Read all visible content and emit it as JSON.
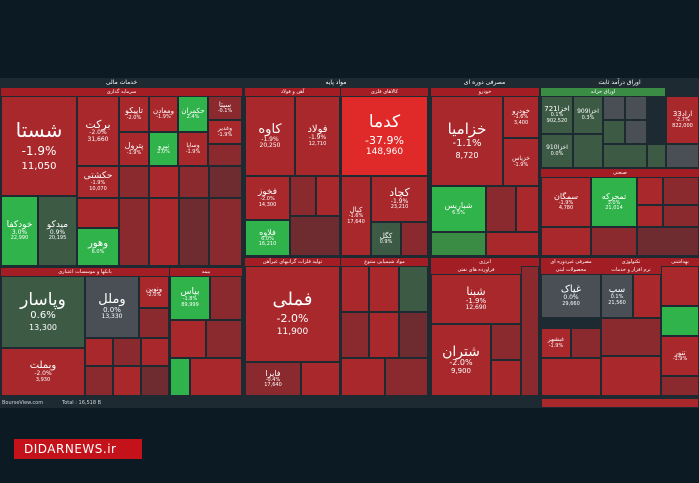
{
  "sections": {
    "khadamat_mali": "خدمات مالی",
    "mavad_payeh": "مواد پایه",
    "masrafi_dore_i": "مصرفی دوره ای",
    "avragh_daramad_sabet": "اوراق درآمد ثابت",
    "avragh_kharidi": "اوراق خزانه",
    "kalahaye_fazi": "کالاهای فلزی",
    "ahan_foolad": "آهن و فولاد",
    "khodro": "خودرو",
    "sanati": "صنعتی",
    "bank_moasesat": "بانکها و موسسات اعتباری",
    "bimeh": "بیمه",
    "tolid_felezat": "تولید فلزات گرانبهای غیرآهن",
    "mavad_shimiaei": "مواد شیمیایی متنوع",
    "enerji": "انرژی",
    "faravardeh_naft": "فراورده های نفتی",
    "mahsoolat_shimiai": "محصولات شیمیایی",
    "masrafi_gheir": "مصرفی غیردوره ای",
    "teknolozhi": "تکنولوژی",
    "behdasht": "بهداشتی",
    "sarmayegozari": "سرمایه گذاری",
    "mahsoolat_lenti": "محصولات لبنی",
    "khadamat_rayane": "خدمات رایانه ای",
    "narm_afzar": "نرم افزار و خدمات"
  },
  "tiles": {
    "shasta": {
      "name": "شستا",
      "pct": "-1.9%",
      "val": "11,050"
    },
    "barkat": {
      "name": "برکت",
      "pct": "-2.0%",
      "val": "31,660"
    },
    "tapikou": {
      "name": "تاپیکو",
      "pct": "-2.0%"
    },
    "vamaadan": {
      "name": "ومعادن",
      "pct": "-1.9%"
    },
    "hekmaran": {
      "name": "حکمران",
      "pct": "2.4%"
    },
    "sita": {
      "name": "سیتا",
      "pct": "-0.1%"
    },
    "petrol": {
      "name": "پترول",
      "pct": "-1.9%"
    },
    "nirou": {
      "name": "نیرو",
      "pct": "2.0%"
    },
    "vasapa": {
      "name": "وساپا",
      "pct": "-1.9%"
    },
    "vaghadir": {
      "name": "وغدیر",
      "pct": "-1.9%"
    },
    "hakeshti": {
      "name": "حکشتی",
      "pct": "-1.9%",
      "val": "10,070"
    },
    "khodkafa": {
      "name": "خودکفا",
      "pct": "3.0%",
      "val": "22,990"
    },
    "midko": {
      "name": "میدکو",
      "pct": "0.9%",
      "val": "20,195"
    },
    "vahour": {
      "name": "وهور",
      "pct": "6.0%"
    },
    "kaveh": {
      "name": "کاوه",
      "pct": "-1.9%",
      "val": "20,250"
    },
    "fooolad": {
      "name": "فولاد",
      "pct": "-1.9%",
      "val": "12,710"
    },
    "fakhouz": {
      "name": "فخوز",
      "pct": "-2.0%",
      "val": "14,300"
    },
    "folaveh": {
      "name": "فلاوه",
      "pct": "6.0%",
      "val": "16,210"
    },
    "kadma": {
      "name": "کدما",
      "pct": "-37.9%",
      "val": "148,960"
    },
    "kechad": {
      "name": "کچاد",
      "pct": "-1.9%",
      "val": "23,210"
    },
    "kegol": {
      "name": "کگل",
      "pct": "0.9%"
    },
    "kial": {
      "name": "کیال",
      "pct": "-1.6%",
      "val": "17,640"
    },
    "khazamia": {
      "name": "خزامیا",
      "pct": "-1.1%",
      "val": "8,720"
    },
    "khodro": {
      "name": "خودرو",
      "pct": "-1.6%",
      "val": "3,400"
    },
    "khazias": {
      "name": "خزیاس",
      "pct": "-1.9%"
    },
    "shebaris": {
      "name": "شباریس",
      "pct": "6.5%"
    },
    "akhza721": {
      "name": "اخزا721",
      "pct": "0.1%",
      "val": "902,520"
    },
    "akhza909": {
      "name": "اخزا909",
      "pct": "0.3%"
    },
    "akhza910": {
      "name": "اخزا910",
      "pct": "0.0%"
    },
    "erad33": {
      "name": "اراد33",
      "pct": "-2.7%",
      "val": "822,000"
    },
    "semgan": {
      "name": "سمگان",
      "pct": "-1.9%",
      "val": "4,780"
    },
    "tamhare": {
      "name": "تمحرکه",
      "pct": "3.0%",
      "val": "21,014"
    },
    "vaparsar": {
      "name": "وپاسار",
      "pct": "0.6%",
      "val": "13,300"
    },
    "vamel": {
      "name": "وملل",
      "pct": "0.0%",
      "val": "13,330"
    },
    "venovin": {
      "name": "ونوین",
      "pct": "-2.0%"
    },
    "vabamelat": {
      "name": "وبملت",
      "pct": "-2.0%",
      "val": "3,930"
    },
    "biyas": {
      "name": "بپاس",
      "pct": "-1.8%",
      "val": "89,999"
    },
    "famli": {
      "name": "فملی",
      "pct": "-2.0%",
      "val": "11,900"
    },
    "faira": {
      "name": "فایرا",
      "pct": "-0.4%",
      "val": "17,640"
    },
    "shebna": {
      "name": "شبنا",
      "pct": "-1.9%",
      "val": "12,690"
    },
    "shetran": {
      "name": "شتران",
      "pct": "-2.0%",
      "val": "9,900"
    },
    "ghiyak": {
      "name": "غپاک",
      "pct": "0.0%",
      "val": "29,660"
    },
    "ghshahr": {
      "name": "غبشهر",
      "pct": "-1.9%"
    },
    "sap": {
      "name": "سپ",
      "pct": "0.1%",
      "val": "21,560"
    },
    "tanour": {
      "name": "تنور",
      "pct": "-1.9%"
    }
  },
  "footer": {
    "source": "BourseView.com",
    "total": "Total : 16,518 B"
  },
  "logo": "DIDARNEWS.ir"
}
